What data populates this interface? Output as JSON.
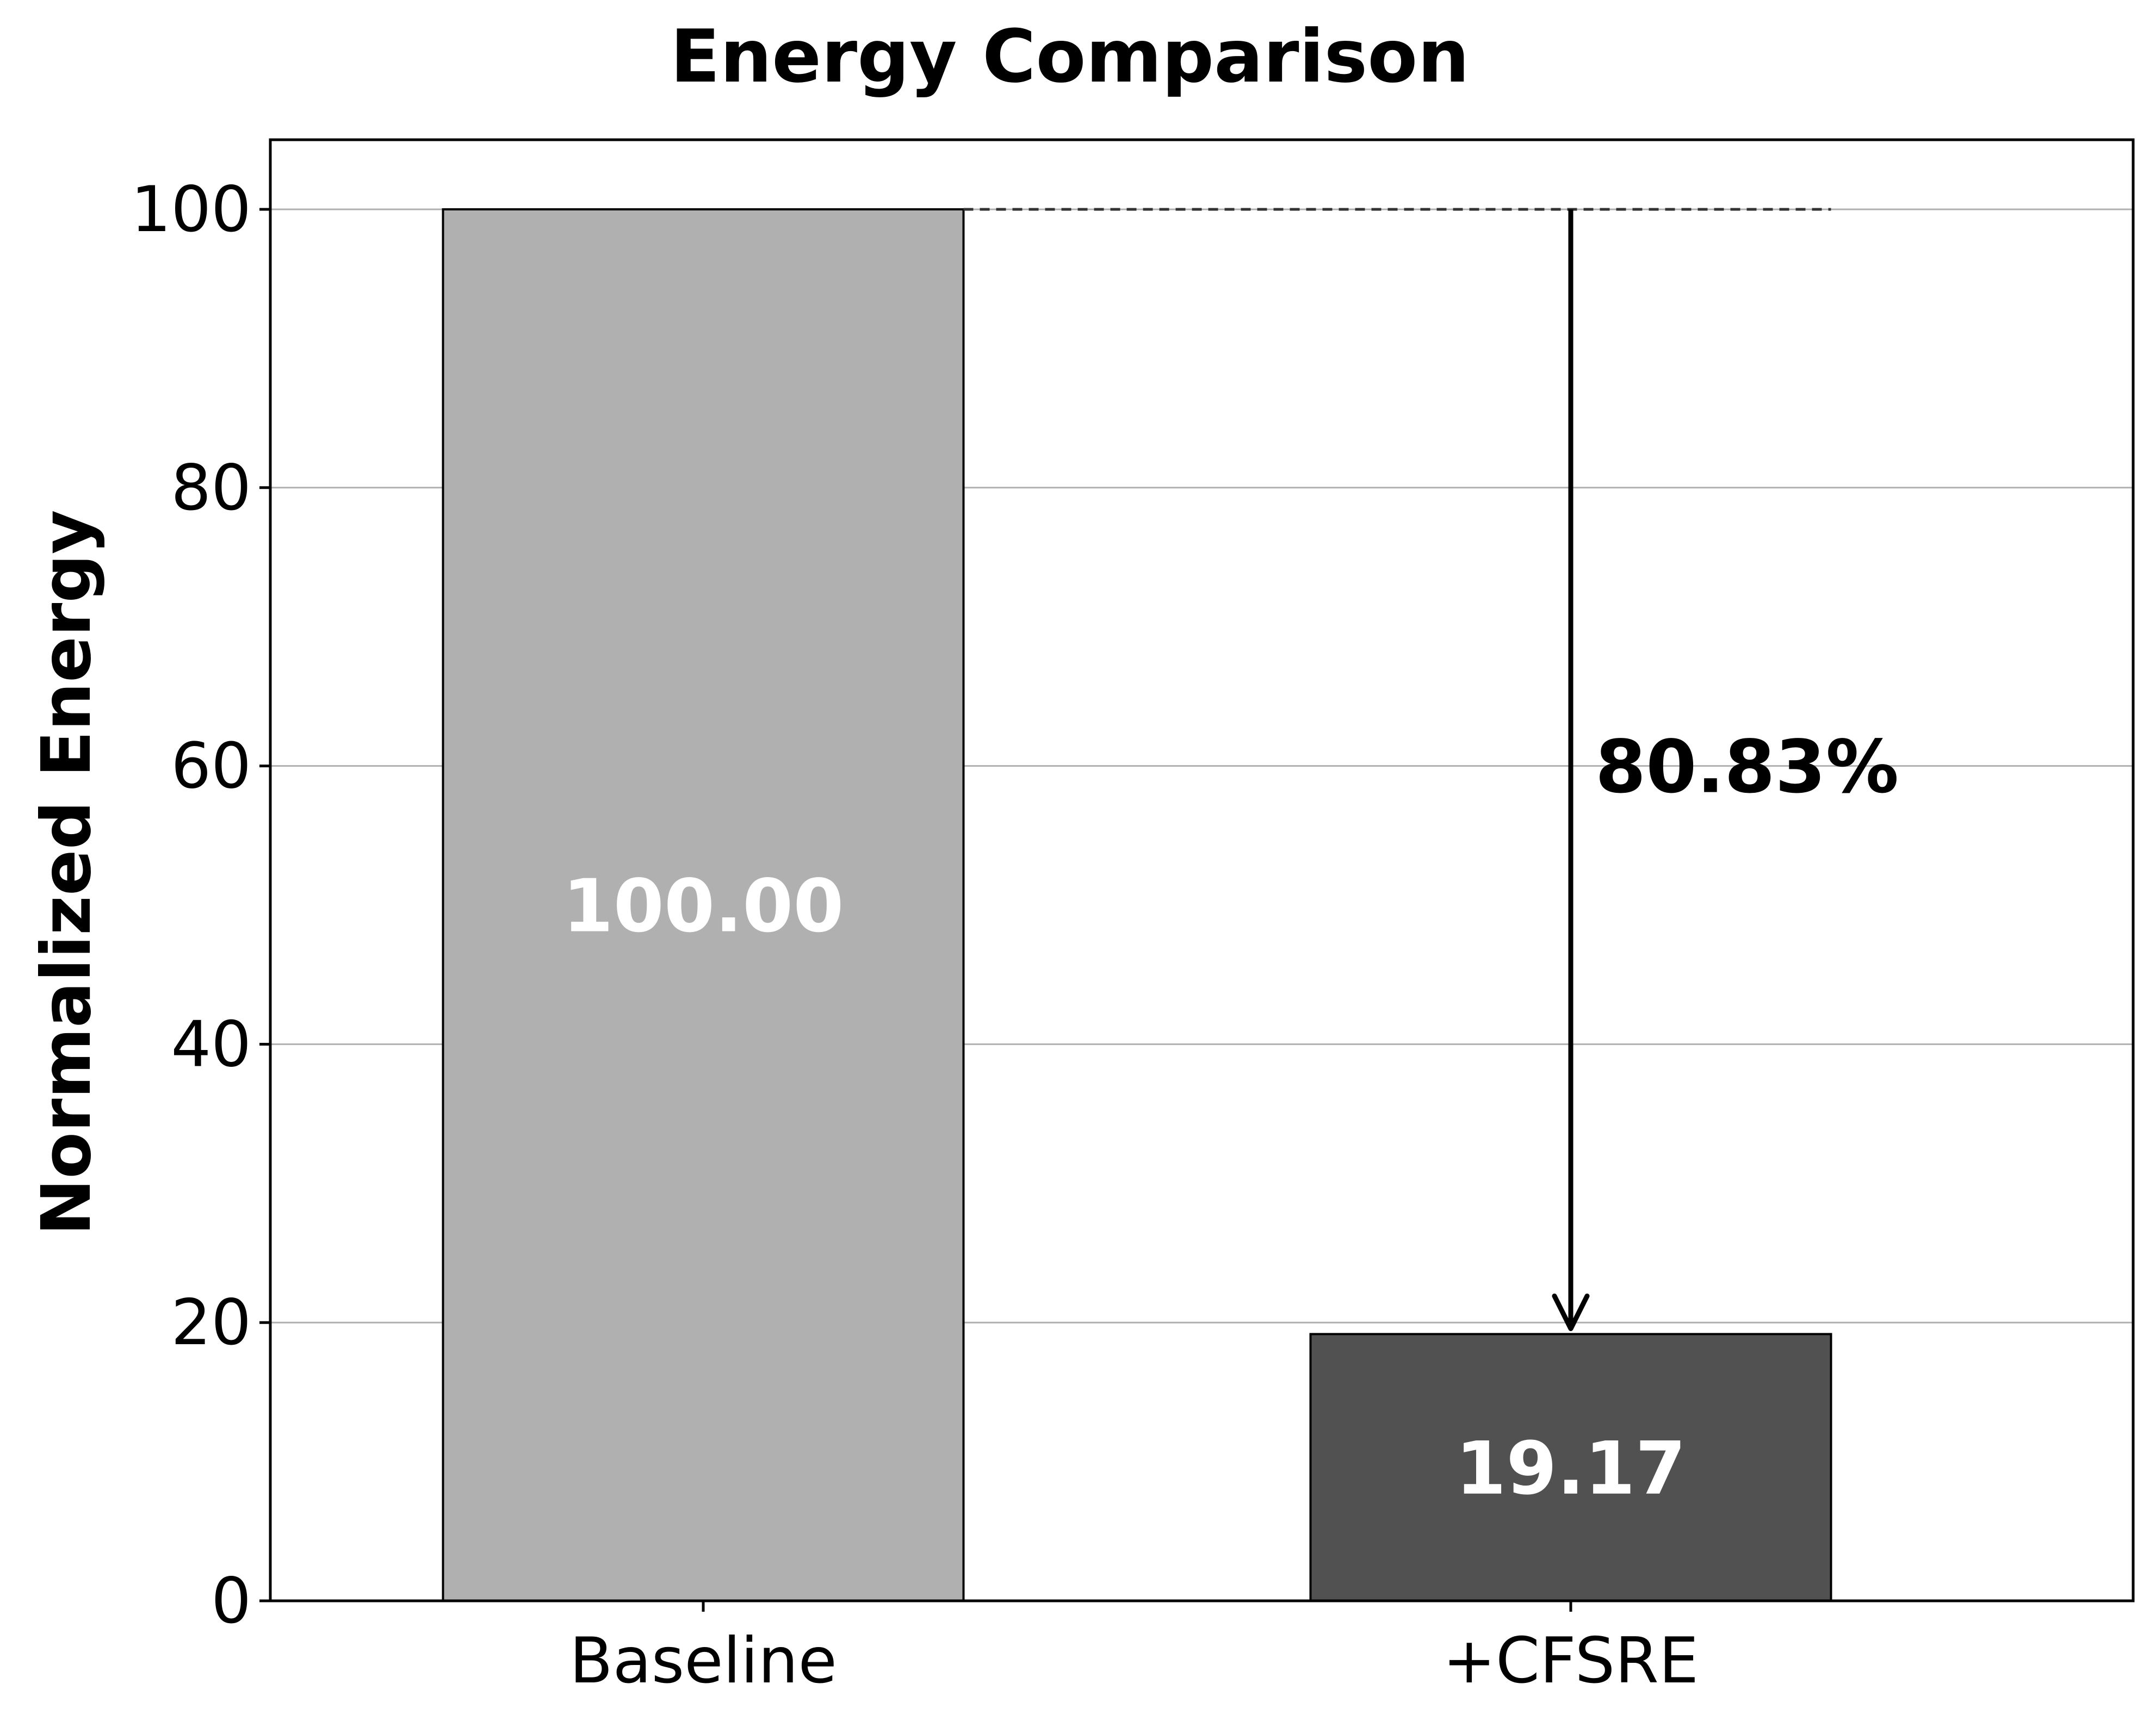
{
  "chart_data": {
    "type": "bar",
    "title": "Energy Comparison",
    "xlabel": "",
    "ylabel": "Normalized Energy",
    "categories": [
      "Baseline",
      "+CFSRE"
    ],
    "values": [
      100.0,
      19.17
    ],
    "value_labels": [
      "100.00",
      "19.17"
    ],
    "bar_colors": [
      "#b0b0b0",
      "#515151"
    ],
    "ylim": [
      0,
      105
    ],
    "yticks": [
      0,
      20,
      40,
      60,
      80,
      100
    ],
    "grid": "horizontal",
    "legend": "none",
    "annotation": {
      "text": "80.83%",
      "from_value": 100,
      "to_value": 19.17
    }
  }
}
